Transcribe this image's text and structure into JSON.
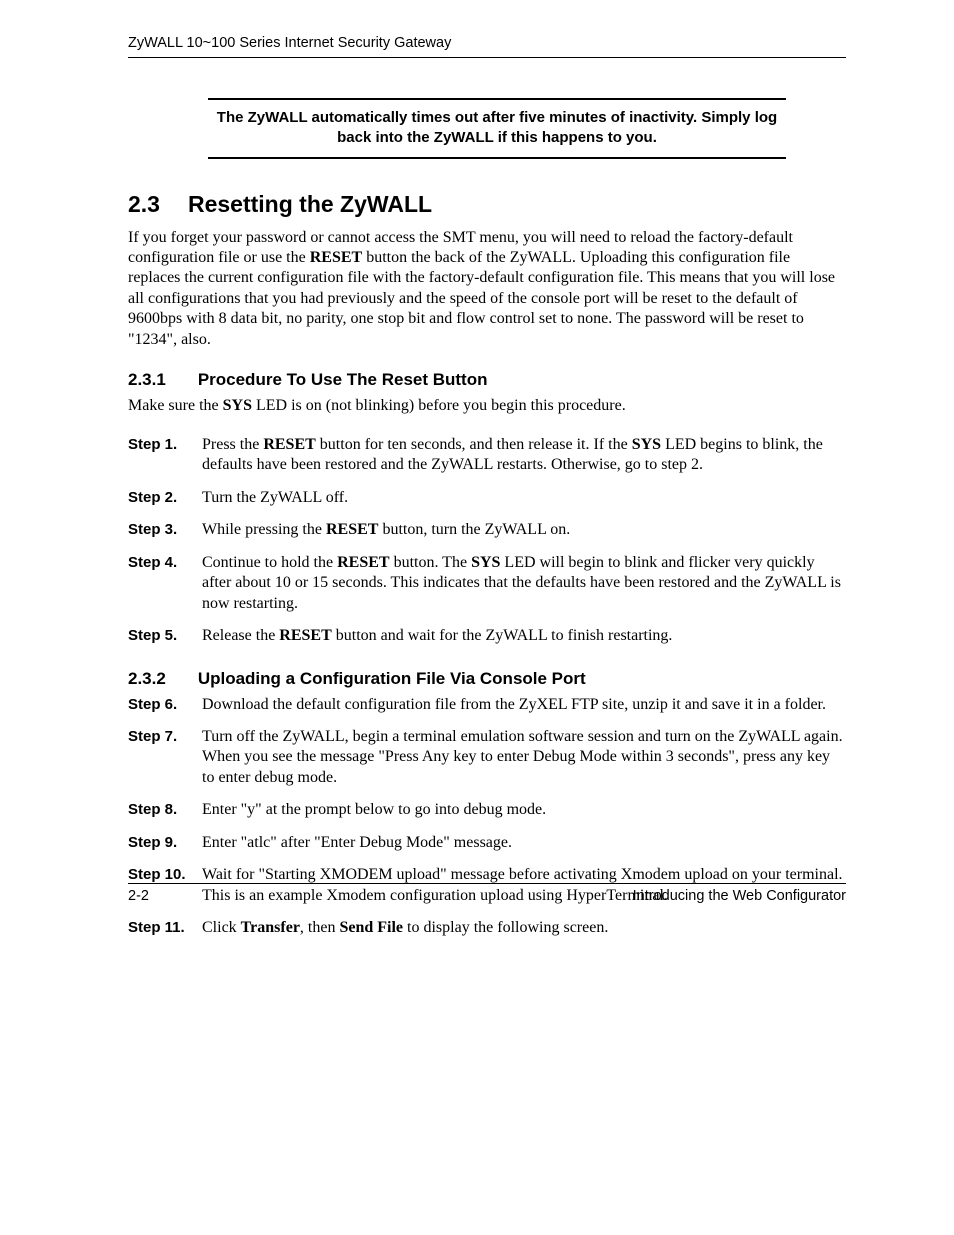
{
  "header": {
    "running_head": "ZyWALL 10~100 Series Internet Security Gateway"
  },
  "note": {
    "line1": "The ZyWALL automatically times out after five minutes of inactivity. Simply log",
    "line2": "back into the ZyWALL if this happens to you."
  },
  "section": {
    "number": "2.3",
    "title": "Resetting the ZyWALL",
    "intro_pre": "If you forget your password or cannot access the SMT menu, you will need to reload the factory-default configuration file or use the ",
    "intro_bold": "RESET",
    "intro_post": " button the back of the ZyWALL. Uploading this configuration file replaces the current configuration file with the factory-default configuration file. This means that you will lose all configurations that you had previously and the speed of the console port will be reset to the default of 9600bps with 8 data bit, no parity, one stop bit and flow control set to none. The password will be reset to \"1234\", also."
  },
  "sub1": {
    "number": "2.3.1",
    "title": "Procedure To Use The Reset Button",
    "lead_pre": "Make sure the ",
    "lead_bold": "SYS",
    "lead_post": " LED is on (not blinking) before you begin this procedure.",
    "steps": [
      {
        "label": "Step 1.",
        "parts": [
          {
            "t": "Press the "
          },
          {
            "t": "RESET",
            "b": true
          },
          {
            "t": " button for ten seconds, and then release it. If the "
          },
          {
            "t": "SYS",
            "b": true
          },
          {
            "t": " LED begins to blink, the defaults have been restored and the ZyWALL restarts. Otherwise, go to step 2."
          }
        ]
      },
      {
        "label": "Step 2.",
        "parts": [
          {
            "t": "Turn the ZyWALL off."
          }
        ]
      },
      {
        "label": "Step 3.",
        "parts": [
          {
            "t": "While pressing the "
          },
          {
            "t": "RESET",
            "b": true
          },
          {
            "t": " button, turn the ZyWALL on."
          }
        ]
      },
      {
        "label": "Step 4.",
        "parts": [
          {
            "t": "Continue to hold the "
          },
          {
            "t": "RESET",
            "b": true
          },
          {
            "t": " button. The "
          },
          {
            "t": "SYS",
            "b": true
          },
          {
            "t": " LED will begin to blink and flicker very quickly after about 10 or 15 seconds. This indicates that the defaults have been restored and the ZyWALL is now restarting."
          }
        ]
      },
      {
        "label": "Step 5.",
        "parts": [
          {
            "t": "Release the "
          },
          {
            "t": "RESET",
            "b": true
          },
          {
            "t": " button and wait for the ZyWALL to finish restarting."
          }
        ]
      }
    ]
  },
  "sub2": {
    "number": "2.3.2",
    "title": "Uploading a Configuration File Via Console Port",
    "steps": [
      {
        "label": "Step 6.",
        "parts": [
          {
            "t": "Download the default configuration file from the ZyXEL FTP site, unzip it and save it in a folder."
          }
        ]
      },
      {
        "label": "Step 7.",
        "parts": [
          {
            "t": "Turn off the ZyWALL, begin a terminal emulation software session and turn on the ZyWALL again. When you see the message \"Press Any key to enter Debug Mode within 3 seconds\", press any key to enter debug mode."
          }
        ]
      },
      {
        "label": "Step 8.",
        "parts": [
          {
            "t": "Enter \"y\" at the prompt below to go into debug mode."
          }
        ]
      },
      {
        "label": "Step 9.",
        "parts": [
          {
            "t": "Enter \"atlc\" after \"Enter Debug Mode\" message."
          }
        ]
      },
      {
        "label": "Step 10.",
        "parts": [
          {
            "t": "Wait for \"Starting XMODEM upload\" message before activating Xmodem upload on your terminal. This is an example Xmodem configuration upload using HyperTerminal."
          }
        ]
      },
      {
        "label": "Step 11.",
        "parts": [
          {
            "t": "Click "
          },
          {
            "t": "Transfer",
            "b": true
          },
          {
            "t": ", then "
          },
          {
            "t": "Send File",
            "b": true
          },
          {
            "t": " to display the following screen."
          }
        ]
      }
    ]
  },
  "footer": {
    "page": "2-2",
    "chapter": "Introducing the Web Configurator"
  }
}
